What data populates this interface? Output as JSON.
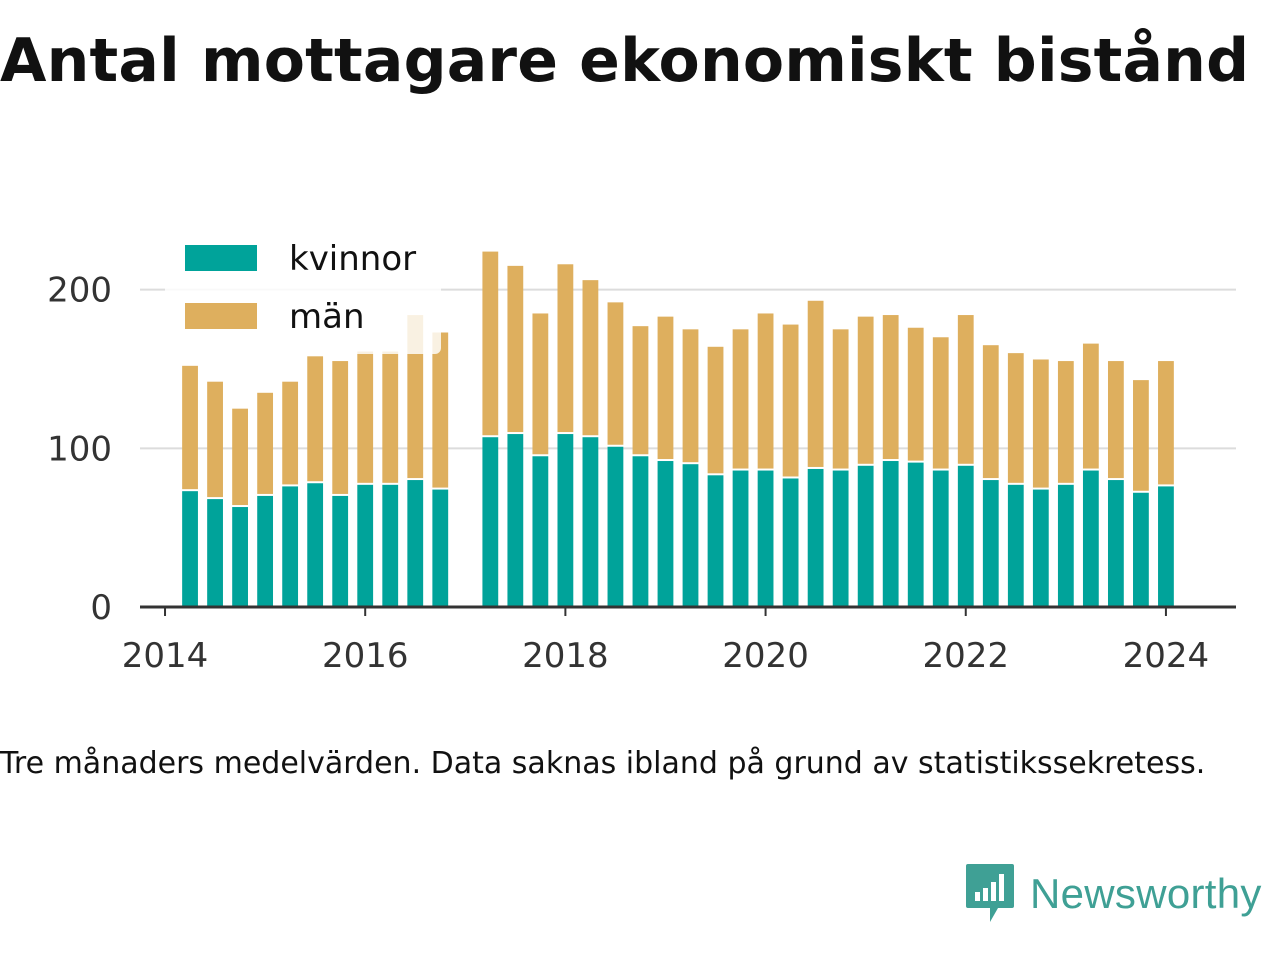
{
  "title": "Antal mottagare ekonomiskt bistånd",
  "note": "Tre månaders medelvärden. Data saknas ibland på grund av statistikssekretess.",
  "brand": "Newsworthy",
  "colors": {
    "kvinnor": "#00a39a",
    "man": "#deaf5e",
    "grid": "#dcdcdc",
    "axis": "#333333",
    "brand": "#3fa095"
  },
  "chart_data": {
    "type": "bar",
    "stacked": true,
    "ylim": [
      0,
      225
    ],
    "yticks": [
      0,
      100,
      200
    ],
    "xlim": [
      2013.75,
      2024.7
    ],
    "xticks": [
      2014,
      2016,
      2018,
      2020,
      2022,
      2024
    ],
    "grid": true,
    "legend_position": "top-left",
    "x": [
      2014.25,
      2014.5,
      2014.75,
      2015.0,
      2015.25,
      2015.5,
      2015.75,
      2016.0,
      2016.25,
      2016.5,
      2016.75,
      2017.25,
      2017.5,
      2017.75,
      2018.0,
      2018.25,
      2018.5,
      2018.75,
      2019.0,
      2019.25,
      2019.5,
      2019.75,
      2020.0,
      2020.25,
      2020.5,
      2020.75,
      2021.0,
      2021.25,
      2021.5,
      2021.75,
      2022.0,
      2022.25,
      2022.5,
      2022.75,
      2023.0,
      2023.25,
      2023.5,
      2023.75,
      2024.0
    ],
    "series": [
      {
        "name": "kvinnor",
        "values": [
          73,
          68,
          63,
          70,
          76,
          78,
          70,
          77,
          77,
          80,
          74,
          107,
          109,
          95,
          109,
          107,
          101,
          95,
          92,
          90,
          83,
          86,
          86,
          81,
          87,
          86,
          89,
          92,
          91,
          86,
          89,
          80,
          77,
          74,
          77,
          86,
          80,
          72,
          76
        ]
      },
      {
        "name": "män",
        "values": [
          79,
          74,
          62,
          65,
          66,
          80,
          85,
          84,
          84,
          104,
          99,
          117,
          106,
          90,
          107,
          99,
          91,
          82,
          91,
          85,
          81,
          89,
          99,
          97,
          106,
          89,
          94,
          92,
          85,
          84,
          95,
          85,
          83,
          82,
          78,
          80,
          75,
          71,
          79
        ]
      }
    ]
  }
}
